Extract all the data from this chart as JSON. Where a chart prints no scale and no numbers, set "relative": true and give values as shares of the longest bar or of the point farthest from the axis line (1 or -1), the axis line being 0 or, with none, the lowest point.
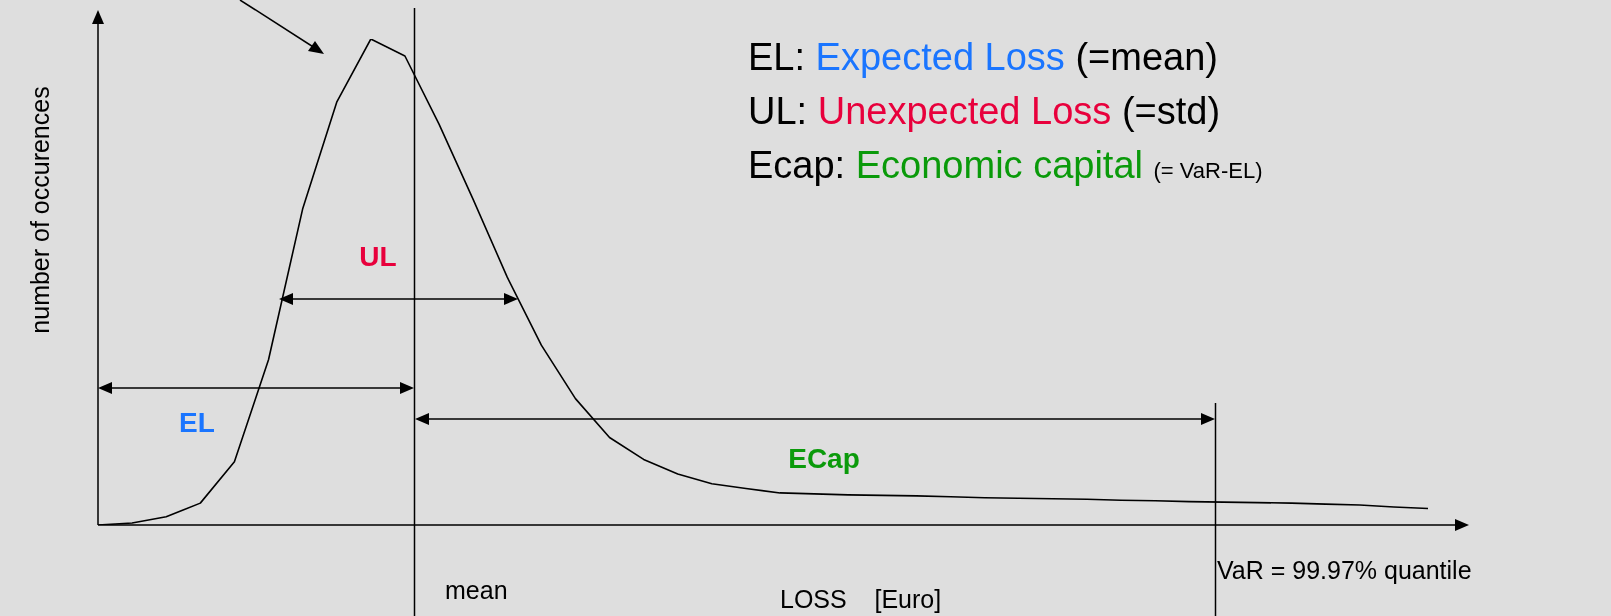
{
  "chart_data": {
    "type": "line",
    "relative": true,
    "tick_labels": false,
    "marker": "none",
    "xlabel": "LOSS    [Euro]",
    "ylabel": "number of occurences",
    "categories": [
      null,
      null,
      null,
      null,
      null,
      null,
      null,
      null,
      null,
      null,
      null,
      null,
      null,
      null,
      null,
      null,
      null,
      null,
      null,
      null,
      null,
      null,
      null,
      null,
      null,
      null,
      null,
      null,
      null,
      null,
      null,
      null,
      null,
      null,
      null,
      null,
      null,
      null,
      null,
      null
    ],
    "series": [
      {
        "color": "#000000",
        "values": [
          0,
          0.004,
          0.017,
          0.045,
          0.13,
          0.34,
          0.65,
          0.87,
          1,
          0.965,
          0.825,
          0.67,
          0.51,
          0.37,
          0.26,
          0.18,
          0.135,
          0.105,
          0.085,
          0.075,
          0.066,
          0.064,
          0.062,
          0.061,
          0.06,
          0.058,
          0.056,
          0.055,
          0.054,
          0.053,
          0.051,
          0.05,
          0.048,
          0.047,
          0.046,
          0.045,
          0.043,
          0.041,
          0.037,
          0.034
        ]
      }
    ],
    "annotations": [
      "EL: Expected Loss  (=mean)",
      "UL: Unexpected Loss (=std)",
      "Ecap: Economic capital (= VaR-EL)",
      "EL",
      "UL",
      "ECap",
      "mean",
      "VaR = 99.97% quantile"
    ]
  }
}
